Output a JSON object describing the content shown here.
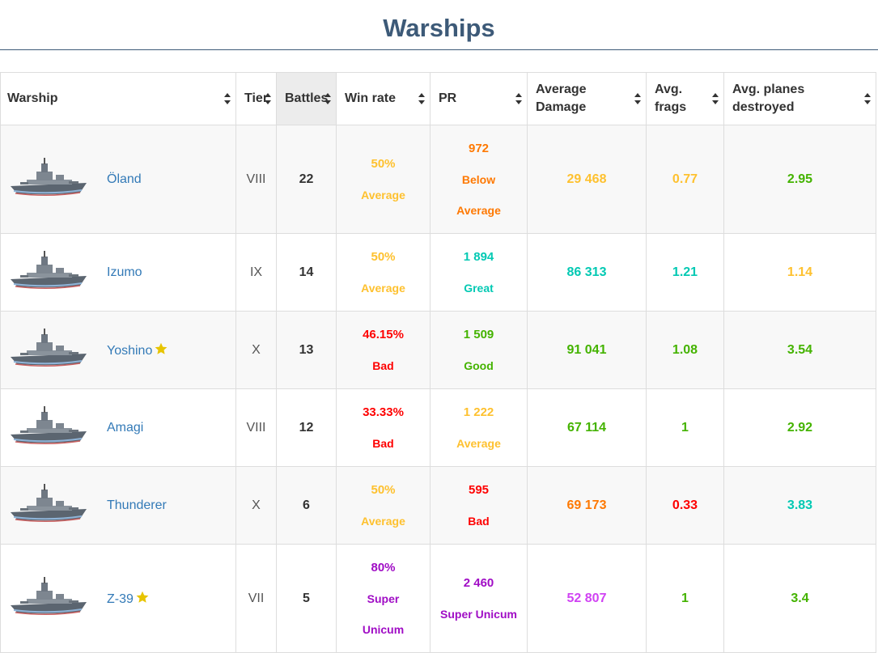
{
  "page": {
    "title": "Warships"
  },
  "colors": {
    "title": "#3d5a78",
    "link": "#337ab7",
    "average": "#fec12f",
    "bad": "#fe0000",
    "below_average": "#fe7903",
    "good": "#44b300",
    "great": "#02c9b3",
    "super_unicum": "#a00dc5",
    "unicum_pink": "#d042f3"
  },
  "table": {
    "columns": [
      {
        "label": "Warship",
        "line1": "Warship",
        "line2": ""
      },
      {
        "label": "Tier",
        "line1": "Tier",
        "line2": ""
      },
      {
        "label": "Battles",
        "line1": "Battles",
        "line2": ""
      },
      {
        "label": "Win rate",
        "line1": "Win rate",
        "line2": ""
      },
      {
        "label": "PR",
        "line1": "PR",
        "line2": ""
      },
      {
        "label": "Average Damage",
        "line1": "Average",
        "line2": "Damage"
      },
      {
        "label": "Avg. frags",
        "line1": "Avg.",
        "line2": "frags"
      },
      {
        "label": "Avg. planes destroyed",
        "line1": "Avg. planes",
        "line2": "destroyed"
      }
    ],
    "sorted_column": "Battles",
    "rows": [
      {
        "name": "Öland",
        "starred": false,
        "tier": "VIII",
        "battles": "22",
        "winrate": "50%",
        "winrate_rating": "Average",
        "pr": "972",
        "pr_rating_line1": "Below",
        "pr_rating_line2": "Average",
        "avg_damage": "29 468",
        "avg_frags": "0.77",
        "avg_planes": "2.95"
      },
      {
        "name": "Izumo",
        "starred": false,
        "tier": "IX",
        "battles": "14",
        "winrate": "50%",
        "winrate_rating": "Average",
        "pr": "1 894",
        "pr_rating": "Great",
        "avg_damage": "86 313",
        "avg_frags": "1.21",
        "avg_planes": "1.14"
      },
      {
        "name": "Yoshino",
        "starred": true,
        "tier": "X",
        "battles": "13",
        "winrate": "46.15%",
        "winrate_rating": "Bad",
        "pr": "1 509",
        "pr_rating": "Good",
        "avg_damage": "91 041",
        "avg_frags": "1.08",
        "avg_planes": "3.54"
      },
      {
        "name": "Amagi",
        "starred": false,
        "tier": "VIII",
        "battles": "12",
        "winrate": "33.33%",
        "winrate_rating": "Bad",
        "pr": "1 222",
        "pr_rating": "Average",
        "avg_damage": "67 114",
        "avg_frags": "1",
        "avg_planes": "2.92"
      },
      {
        "name": "Thunderer",
        "starred": false,
        "tier": "X",
        "battles": "6",
        "winrate": "50%",
        "winrate_rating": "Average",
        "pr": "595",
        "pr_rating": "Bad",
        "avg_damage": "69 173",
        "avg_frags": "0.33",
        "avg_planes": "3.83"
      },
      {
        "name": "Z-39",
        "starred": true,
        "tier": "VII",
        "battles": "5",
        "winrate": "80%",
        "winrate_rating_line1": "Super",
        "winrate_rating_line2": "Unicum",
        "pr": "2 460",
        "pr_rating": "Super Unicum",
        "avg_damage": "52 807",
        "avg_frags": "1",
        "avg_planes": "3.4"
      }
    ]
  }
}
